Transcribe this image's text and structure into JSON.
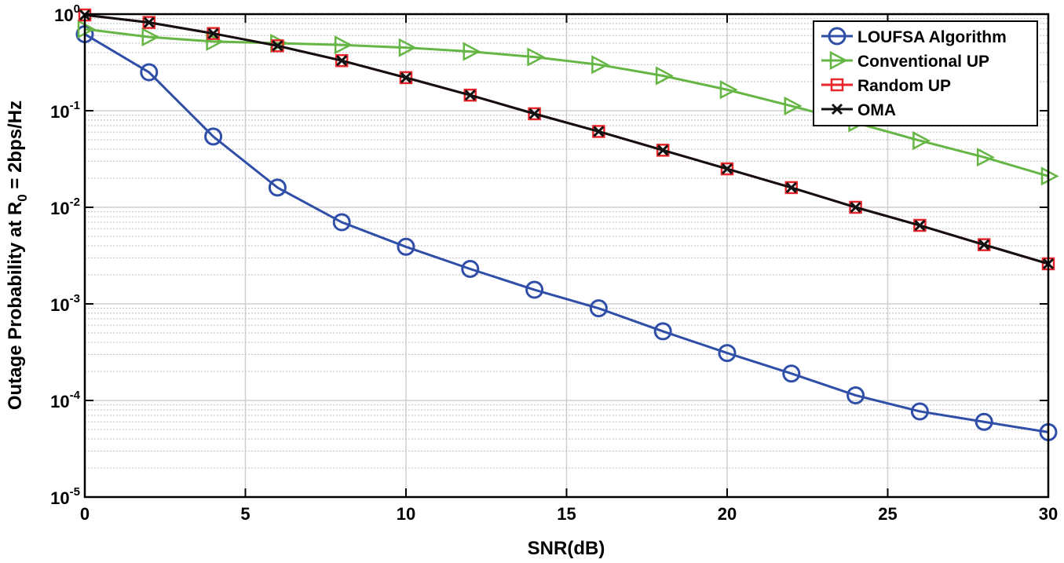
{
  "chart_data": {
    "type": "line",
    "yscale": "log",
    "xlabel": "SNR(dB)",
    "ylabel": {
      "prefix": "Outage Probability at R",
      "subscript": "0",
      "suffix": " = 2bps/Hz"
    },
    "xlim": [
      0,
      30
    ],
    "ylim": [
      1e-05,
      1
    ],
    "xticks": [
      0,
      5,
      10,
      15,
      20,
      25,
      30
    ],
    "yticks": [
      {
        "value": 1,
        "base": "10",
        "exp": "0"
      },
      {
        "value": 0.1,
        "base": "10",
        "exp": "-1"
      },
      {
        "value": 0.01,
        "base": "10",
        "exp": "-2"
      },
      {
        "value": 0.001,
        "base": "10",
        "exp": "-3"
      },
      {
        "value": 0.0001,
        "base": "10",
        "exp": "-4"
      },
      {
        "value": 1e-05,
        "base": "10",
        "exp": "-5"
      }
    ],
    "grid": true,
    "legend_position": "top-right",
    "x": [
      0,
      2,
      4,
      6,
      8,
      10,
      12,
      14,
      16,
      18,
      20,
      22,
      24,
      26,
      28,
      30
    ],
    "series": [
      {
        "name": "LOUFSA Algorithm",
        "color": "#2f4ea8",
        "marker": "circle",
        "values": [
          0.62,
          0.25,
          0.054,
          0.016,
          0.007,
          0.0039,
          0.0023,
          0.0014,
          0.0009,
          0.00052,
          0.00031,
          0.00019,
          0.000113,
          7.7e-05,
          6e-05,
          4.7e-05
        ]
      },
      {
        "name": "Conventional UP",
        "color": "#66b645",
        "marker": "triangle-right",
        "values": [
          0.7,
          0.58,
          0.52,
          0.5,
          0.48,
          0.45,
          0.41,
          0.36,
          0.3,
          0.23,
          0.165,
          0.112,
          0.075,
          0.049,
          0.033,
          0.021
        ]
      },
      {
        "name": "Random UP",
        "color": "#e8262b",
        "marker": "square",
        "values": [
          0.98,
          0.82,
          0.63,
          0.47,
          0.33,
          0.22,
          0.145,
          0.093,
          0.061,
          0.039,
          0.025,
          0.016,
          0.01,
          0.0065,
          0.0041,
          0.0026
        ]
      },
      {
        "name": "OMA",
        "color": "#111111",
        "marker": "x",
        "values": [
          0.98,
          0.82,
          0.63,
          0.47,
          0.33,
          0.22,
          0.145,
          0.093,
          0.061,
          0.039,
          0.025,
          0.016,
          0.01,
          0.0065,
          0.0041,
          0.0026
        ]
      }
    ]
  }
}
